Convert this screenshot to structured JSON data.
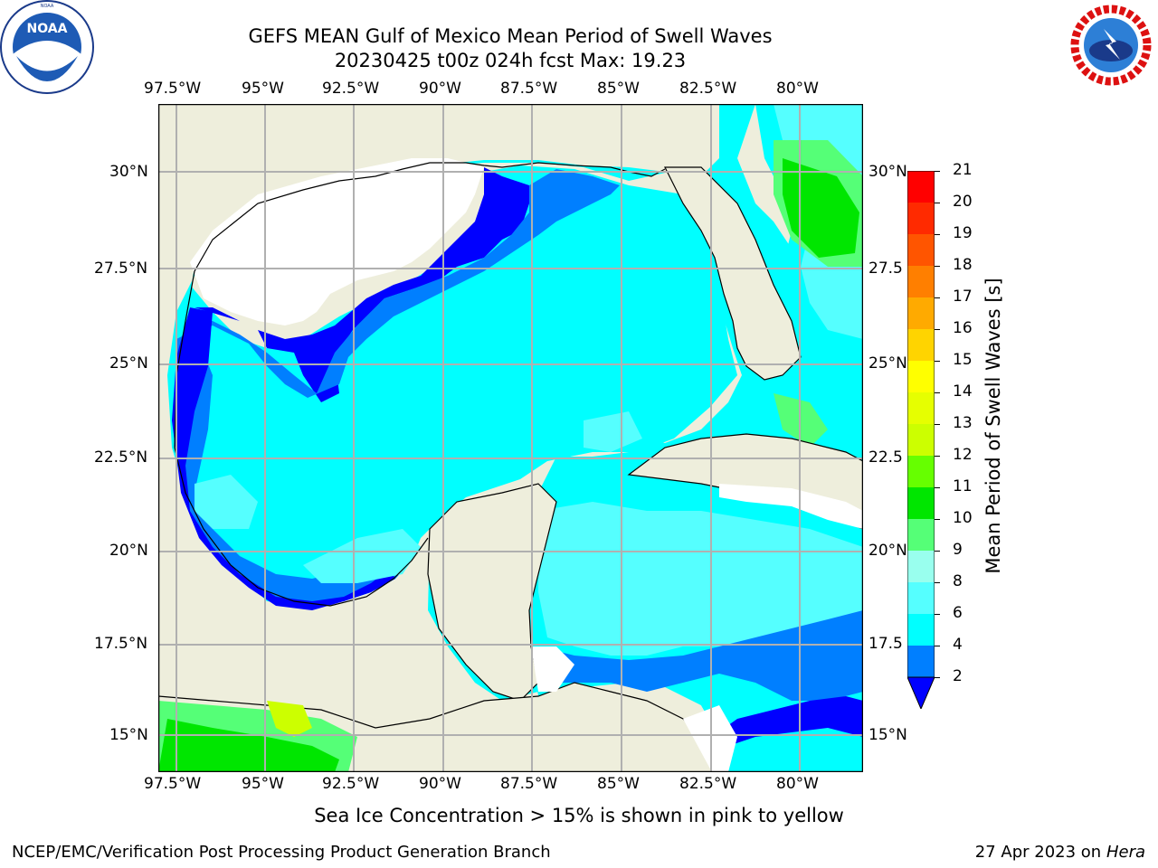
{
  "title_line1": "GEFS MEAN Gulf of Mexico Mean Period of Swell Waves",
  "title_line2": "20230425 t00z 024h fcst   Max: 19.23",
  "noaa_logo_text": "NOAA",
  "noaa_ring_text": "NATIONAL OCEANIC AND ATMOSPHERIC ADMINISTRATION · U.S. DEPARTMENT OF COMMERCE",
  "nws_ring_text": "NATIONAL WEATHER SERVICE",
  "lon_labels": [
    "97.5°W",
    "95°W",
    "92.5°W",
    "90°W",
    "87.5°W",
    "85°W",
    "82.5°W",
    "80°W"
  ],
  "lat_labels": [
    "30°N",
    "27.5°N",
    "25°N",
    "22.5°N",
    "20°N",
    "17.5°N",
    "15°N"
  ],
  "lat_labels_right": [
    "30°N",
    "27.5",
    "25°N",
    "22.5",
    "20°N",
    "17.5",
    "15°N"
  ],
  "colorbar": {
    "label": "Mean Period of Swell Waves [s]",
    "ticks": [
      "21",
      "20",
      "19",
      "18",
      "17",
      "16",
      "15",
      "14",
      "13",
      "12",
      "11",
      "10",
      "9",
      "8",
      "6",
      "4",
      "2"
    ],
    "colors": [
      "#ff0000",
      "#ff2a00",
      "#ff5500",
      "#ff7f00",
      "#ffaa00",
      "#ffd400",
      "#ffff00",
      "#e6ff00",
      "#ccff00",
      "#66ff00",
      "#00e600",
      "#55ff77",
      "#99ffee",
      "#55ffff",
      "#00ffff",
      "#007fff",
      "#0000ff"
    ]
  },
  "sea_ice_note": "Sea Ice Concentration > 15% is shown in pink to yellow",
  "footer_left": "NCEP/EMC/Verification Post Processing Product Generation Branch",
  "footer_date": "27 Apr 2023 on ",
  "footer_host": "Hera",
  "colors": {
    "land": "#eeeedc",
    "ocean_main": "#00ffff",
    "ocean_light": "#55ffff",
    "ocean_mid": "#007fff",
    "ocean_dark": "#0000ff",
    "green": "#00e600",
    "grid": "#b0b0b0"
  }
}
